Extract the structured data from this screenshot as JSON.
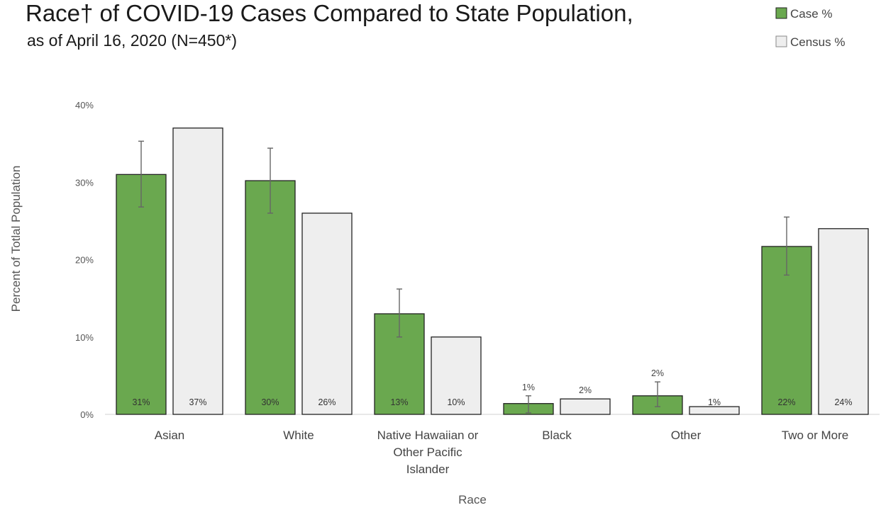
{
  "title": "Race† of COVID-19 Cases Compared to State Population,",
  "subtitle": "as of April 16, 2020 (N=450*)",
  "colors": {
    "case": "#6aa84f",
    "census": "#eeeeee",
    "bar_stroke": "#222222",
    "error_bar": "#666666"
  },
  "chart_data": {
    "type": "bar",
    "categories": [
      [
        "Asian"
      ],
      [
        "White"
      ],
      [
        "Native Hawaiian or",
        "Other Pacific",
        "Islander"
      ],
      [
        "Black"
      ],
      [
        "Other"
      ],
      [
        "Two or More"
      ]
    ],
    "series": [
      {
        "name": "Case %",
        "values": [
          31,
          30.2,
          13,
          1.4,
          2.4,
          21.7
        ],
        "labels": [
          "31%",
          "30%",
          "13%",
          "1%",
          "2%",
          "22%"
        ],
        "label_position": [
          "inside-bottom",
          "inside-bottom",
          "inside-bottom",
          "above",
          "above",
          "inside-bottom"
        ],
        "error_low": [
          26.8,
          26,
          10,
          0.2,
          1,
          18
        ],
        "error_high": [
          35.3,
          34.4,
          16.2,
          2.4,
          4.2,
          25.5
        ]
      },
      {
        "name": "Census %",
        "values": [
          37,
          26,
          10,
          2,
          1,
          24
        ],
        "labels": [
          "37%",
          "26%",
          "10%",
          "2%",
          "1%",
          "24%"
        ],
        "label_position": [
          "inside-bottom",
          "inside-bottom",
          "inside-bottom",
          "above",
          "inside-bottom",
          "inside-bottom"
        ]
      }
    ],
    "y_ticks": [
      "0%",
      "10%",
      "20%",
      "30%",
      "40%"
    ],
    "y_tick_values": [
      0,
      10,
      20,
      30,
      40
    ],
    "ylim": [
      0,
      40
    ],
    "xlabel": "Race",
    "ylabel": "Percent of Totlal Population",
    "legend_position": "top-right",
    "grid": false
  }
}
